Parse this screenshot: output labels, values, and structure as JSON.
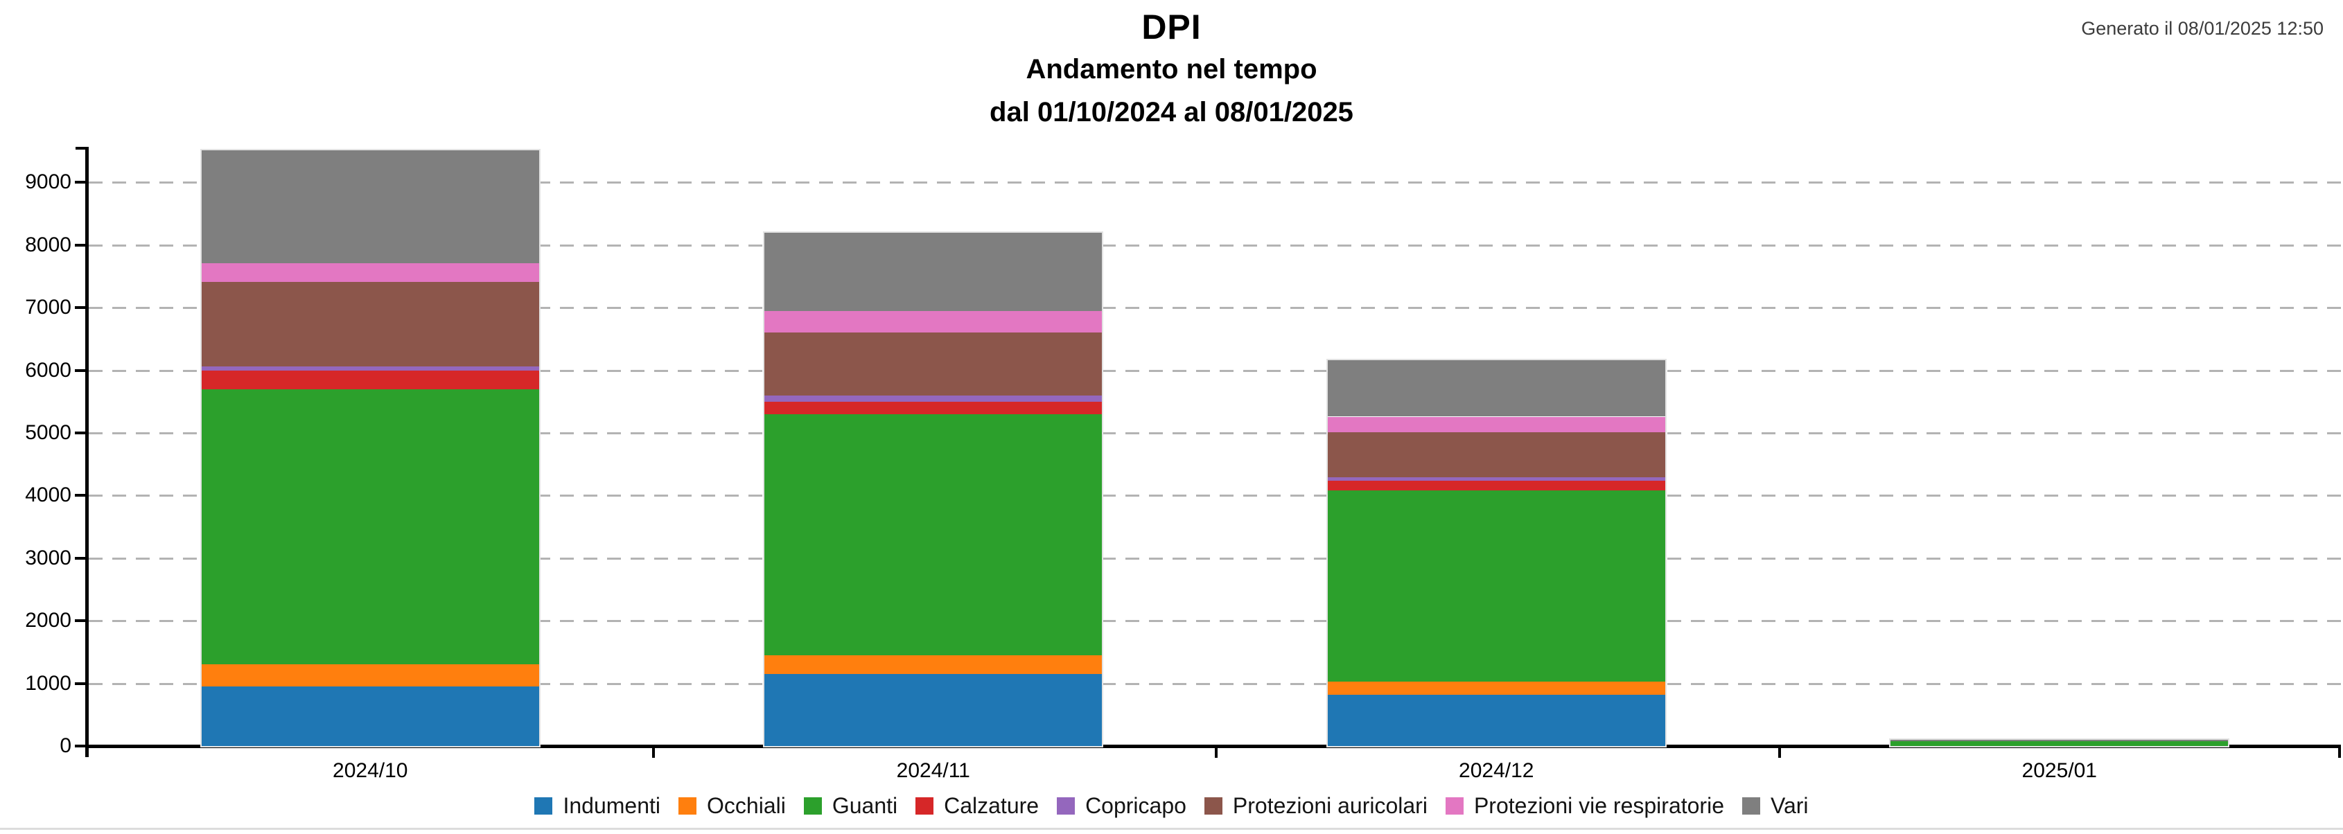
{
  "header": {
    "title": "DPI",
    "subtitle": "Andamento nel tempo",
    "period": "dal 01/10/2024 al 08/01/2025",
    "generated": "Generato il 08/01/2025 12:50"
  },
  "chart_data": {
    "type": "bar",
    "stacked": true,
    "title": "DPI",
    "subtitle": "Andamento nel tempo",
    "period_label": "dal 01/10/2024 al 08/01/2025",
    "categories": [
      "2024/10",
      "2024/11",
      "2024/12",
      "2025/01"
    ],
    "series": [
      {
        "name": "Indumenti",
        "color": "#1f77b4",
        "values": [
          950,
          1150,
          820,
          0
        ]
      },
      {
        "name": "Occhiali",
        "color": "#ff7f0e",
        "values": [
          350,
          300,
          210,
          0
        ]
      },
      {
        "name": "Guanti",
        "color": "#2ca02c",
        "values": [
          4400,
          3850,
          3050,
          80
        ]
      },
      {
        "name": "Calzature",
        "color": "#d62728",
        "values": [
          300,
          200,
          160,
          0
        ]
      },
      {
        "name": "Copricapo",
        "color": "#9467bd",
        "values": [
          60,
          100,
          50,
          0
        ]
      },
      {
        "name": "Protezioni auricolari",
        "color": "#8c564b",
        "values": [
          1350,
          1000,
          720,
          0
        ]
      },
      {
        "name": "Protezioni vie respiratorie",
        "color": "#e377c2",
        "values": [
          300,
          350,
          250,
          0
        ]
      },
      {
        "name": "Vari",
        "color": "#7f7f7f",
        "values": [
          1800,
          1250,
          900,
          20
        ]
      }
    ],
    "totals": [
      9510,
      8200,
      6160,
      100
    ],
    "y_axis": {
      "min": 0,
      "max": 9580,
      "tick_step": 1000,
      "tick_labels": [
        "0",
        "1000",
        "2000",
        "3000",
        "4000",
        "5000",
        "6000",
        "7000",
        "8000",
        "9000"
      ]
    },
    "grid": "horizontal-dashed",
    "grid_color": "#b3b3b3",
    "axis_color": "#000000",
    "legend_position": "bottom"
  }
}
